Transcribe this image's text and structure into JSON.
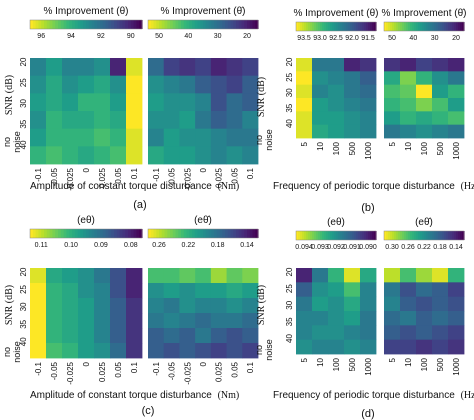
{
  "colormap": [
    "#fde725",
    "#b5de2b",
    "#6ece58",
    "#35b779",
    "#1f9e89",
    "#26828e",
    "#31688e",
    "#3e4989",
    "#482878",
    "#440154"
  ],
  "chart_data": [
    {
      "type": "heatmap",
      "id": "a-theta",
      "title": "% Improvement (θ)",
      "colorbar_ticks": [
        "96",
        "94",
        "92",
        "90"
      ],
      "x_categories": [
        "-0.1",
        "-0.05",
        "-0.025",
        "0",
        "0.025",
        "0.05",
        "0.1"
      ],
      "y_categories": [
        "20",
        "25",
        "30",
        "35",
        "40",
        "no noise"
      ],
      "values": [
        [
          0.55,
          0.45,
          0.55,
          0.55,
          0.5,
          0.9,
          0.05
        ],
        [
          0.5,
          0.4,
          0.5,
          0.45,
          0.4,
          0.5,
          0.0
        ],
        [
          0.45,
          0.4,
          0.45,
          0.35,
          0.35,
          0.45,
          0.0
        ],
        [
          0.5,
          0.35,
          0.4,
          0.4,
          0.35,
          0.4,
          0.0
        ],
        [
          0.45,
          0.35,
          0.35,
          0.35,
          0.3,
          0.35,
          0.05
        ],
        [
          0.35,
          0.3,
          0.35,
          0.4,
          0.35,
          0.3,
          0.05
        ]
      ]
    },
    {
      "type": "heatmap",
      "id": "a-thetadot",
      "title": "% Improvement (θ̇)",
      "colorbar_ticks": [
        "50",
        "40",
        "30",
        "20"
      ],
      "x_categories": [
        "-0.1",
        "-0.05",
        "-0.025",
        "0",
        "0.025",
        "0.05",
        "0.1"
      ],
      "y_categories": [
        "20",
        "25",
        "30",
        "35",
        "40",
        "no noise"
      ],
      "values": [
        [
          0.65,
          0.8,
          0.85,
          0.8,
          0.9,
          0.85,
          0.8
        ],
        [
          0.5,
          0.55,
          0.6,
          0.7,
          0.75,
          0.8,
          0.7
        ],
        [
          0.45,
          0.5,
          0.5,
          0.55,
          0.75,
          0.65,
          0.7
        ],
        [
          0.5,
          0.5,
          0.45,
          0.6,
          0.7,
          0.65,
          0.55
        ],
        [
          0.55,
          0.45,
          0.5,
          0.5,
          0.55,
          0.6,
          0.6
        ],
        [
          0.4,
          0.45,
          0.45,
          0.5,
          0.55,
          0.5,
          0.55
        ]
      ]
    },
    {
      "type": "heatmap",
      "id": "b-theta",
      "title": "% Improvement (θ)",
      "colorbar_ticks": [
        "93.5",
        "93.0",
        "92.5",
        "92.0",
        "91.5"
      ],
      "x_categories": [
        "5",
        "10",
        "100",
        "500",
        "1000"
      ],
      "y_categories": [
        "20",
        "25",
        "30",
        "35",
        "40",
        "no noise"
      ],
      "values": [
        [
          0.05,
          0.6,
          0.6,
          0.9,
          0.85
        ],
        [
          0.0,
          0.5,
          0.55,
          0.6,
          0.7
        ],
        [
          0.05,
          0.55,
          0.5,
          0.6,
          0.65
        ],
        [
          0.0,
          0.45,
          0.5,
          0.55,
          0.6
        ],
        [
          0.05,
          0.45,
          0.45,
          0.5,
          0.55
        ],
        [
          0.05,
          0.4,
          0.45,
          0.5,
          0.55
        ]
      ]
    },
    {
      "type": "heatmap",
      "id": "b-thetadot",
      "title": "% Improvement (θ̇)",
      "colorbar_ticks": [
        "50",
        "40",
        "30",
        "20"
      ],
      "x_categories": [
        "5",
        "10",
        "100",
        "500",
        "1000"
      ],
      "y_categories": [
        "20",
        "25",
        "30",
        "35",
        "40",
        "no noise"
      ],
      "values": [
        [
          0.85,
          0.9,
          0.8,
          0.85,
          0.9
        ],
        [
          0.4,
          0.2,
          0.35,
          0.5,
          0.6
        ],
        [
          0.3,
          0.25,
          0.0,
          0.45,
          0.35
        ],
        [
          0.35,
          0.3,
          0.2,
          0.3,
          0.45
        ],
        [
          0.45,
          0.35,
          0.4,
          0.35,
          0.3
        ],
        [
          0.6,
          0.55,
          0.5,
          0.55,
          0.6
        ]
      ]
    },
    {
      "type": "heatmap",
      "id": "c-etheta",
      "title": "(eθ)",
      "colorbar_ticks": [
        "0.11",
        "0.10",
        "0.09",
        "0.08"
      ],
      "x_categories": [
        "-0.1",
        "-0.05",
        "-0.025",
        "0",
        "0.025",
        "0.05",
        "0.1"
      ],
      "y_categories": [
        "20",
        "25",
        "30",
        "35",
        "40",
        "no noise"
      ],
      "values": [
        [
          0.05,
          0.4,
          0.45,
          0.5,
          0.6,
          0.75,
          0.9
        ],
        [
          0.0,
          0.35,
          0.4,
          0.5,
          0.55,
          0.75,
          0.9
        ],
        [
          0.0,
          0.35,
          0.4,
          0.45,
          0.55,
          0.7,
          0.85
        ],
        [
          0.0,
          0.35,
          0.4,
          0.45,
          0.55,
          0.7,
          0.85
        ],
        [
          0.0,
          0.35,
          0.4,
          0.45,
          0.55,
          0.7,
          0.85
        ],
        [
          0.0,
          0.3,
          0.35,
          0.45,
          0.5,
          0.65,
          0.85
        ]
      ]
    },
    {
      "type": "heatmap",
      "id": "c-ethetadot",
      "title": "(eθ̇)",
      "colorbar_ticks": [
        "0.26",
        "0.22",
        "0.18",
        "0.14"
      ],
      "x_categories": [
        "-0.1",
        "-0.05",
        "-0.025",
        "0",
        "0.025",
        "0.05",
        "0.1"
      ],
      "y_categories": [
        "20",
        "25",
        "30",
        "35",
        "40",
        "no noise"
      ],
      "values": [
        [
          0.3,
          0.3,
          0.25,
          0.3,
          0.15,
          0.25,
          0.2
        ],
        [
          0.5,
          0.45,
          0.5,
          0.45,
          0.45,
          0.4,
          0.45
        ],
        [
          0.55,
          0.6,
          0.5,
          0.55,
          0.55,
          0.5,
          0.55
        ],
        [
          0.6,
          0.55,
          0.6,
          0.65,
          0.6,
          0.6,
          0.65
        ],
        [
          0.7,
          0.65,
          0.7,
          0.6,
          0.7,
          0.75,
          0.7
        ],
        [
          0.7,
          0.75,
          0.7,
          0.75,
          0.8,
          0.75,
          0.8
        ]
      ]
    },
    {
      "type": "heatmap",
      "id": "d-etheta",
      "title": "(eθ)",
      "colorbar_ticks": [
        "0.094",
        "0.093",
        "0.092",
        "0.091",
        "0.090"
      ],
      "x_categories": [
        "5",
        "10",
        "100",
        "500",
        "1000"
      ],
      "y_categories": [
        "20",
        "25",
        "30",
        "35",
        "40",
        "no noise"
      ],
      "values": [
        [
          0.9,
          0.6,
          0.35,
          0.05,
          0.4
        ],
        [
          0.7,
          0.5,
          0.45,
          0.3,
          0.55
        ],
        [
          0.6,
          0.45,
          0.5,
          0.4,
          0.55
        ],
        [
          0.55,
          0.55,
          0.5,
          0.45,
          0.6
        ],
        [
          0.55,
          0.5,
          0.5,
          0.55,
          0.6
        ],
        [
          0.5,
          0.55,
          0.55,
          0.5,
          0.55
        ]
      ]
    },
    {
      "type": "heatmap",
      "id": "d-ethetadot",
      "title": "(eθ̇)",
      "colorbar_ticks": [
        "0.30",
        "0.26",
        "0.22",
        "0.18",
        "0.14"
      ],
      "x_categories": [
        "5",
        "10",
        "100",
        "500",
        "1000"
      ],
      "y_categories": [
        "20",
        "25",
        "30",
        "35",
        "40",
        "no noise"
      ],
      "values": [
        [
          0.1,
          0.3,
          0.15,
          0.05,
          0.35
        ],
        [
          0.6,
          0.75,
          0.65,
          0.7,
          0.8
        ],
        [
          0.55,
          0.7,
          0.75,
          0.7,
          0.75
        ],
        [
          0.65,
          0.6,
          0.7,
          0.65,
          0.7
        ],
        [
          0.7,
          0.75,
          0.7,
          0.75,
          0.8
        ],
        [
          0.8,
          0.8,
          0.85,
          0.8,
          0.85
        ]
      ]
    }
  ],
  "labels": {
    "ylabel_snr": "SNR (dB)",
    "y_ticks_numeric": [
      "40",
      "35",
      "30",
      "25",
      "20"
    ],
    "no_noise_line1": "no",
    "no_noise_line2": "noise",
    "xlabel_amplitude": "Amplitude of constant torque disturbance",
    "xlabel_amplitude_unit": "(Nm)",
    "xlabel_frequency": "Frequency of periodic torque disturbance",
    "xlabel_frequency_unit": "(Hz)",
    "panel_a": "(a)",
    "panel_b": "(b)",
    "panel_c": "(c)",
    "panel_d": "(d)"
  }
}
